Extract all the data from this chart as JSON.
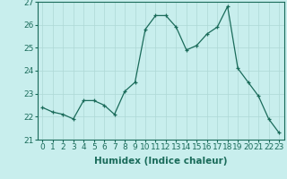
{
  "xlabel": "Humidex (Indice chaleur)",
  "x": [
    0,
    1,
    2,
    3,
    4,
    5,
    6,
    7,
    8,
    9,
    10,
    11,
    12,
    13,
    14,
    15,
    16,
    17,
    18,
    19,
    20,
    21,
    22,
    23
  ],
  "y": [
    22.4,
    22.2,
    22.1,
    21.9,
    22.7,
    22.7,
    22.5,
    22.1,
    23.1,
    23.5,
    25.8,
    26.4,
    26.4,
    25.9,
    24.9,
    25.1,
    25.6,
    25.9,
    26.8,
    24.1,
    23.5,
    22.9,
    21.9,
    21.3
  ],
  "ylim": [
    21,
    27
  ],
  "yticks": [
    21,
    22,
    23,
    24,
    25,
    26,
    27
  ],
  "xlim": [
    -0.5,
    23.5
  ],
  "line_color": "#1a6b5a",
  "marker": "+",
  "marker_color": "#1a6b5a",
  "bg_color": "#c8eeed",
  "grid_color": "#aed8d6",
  "text_color": "#1a6b5a",
  "tick_font_size": 6.5,
  "label_font_size": 7.5
}
